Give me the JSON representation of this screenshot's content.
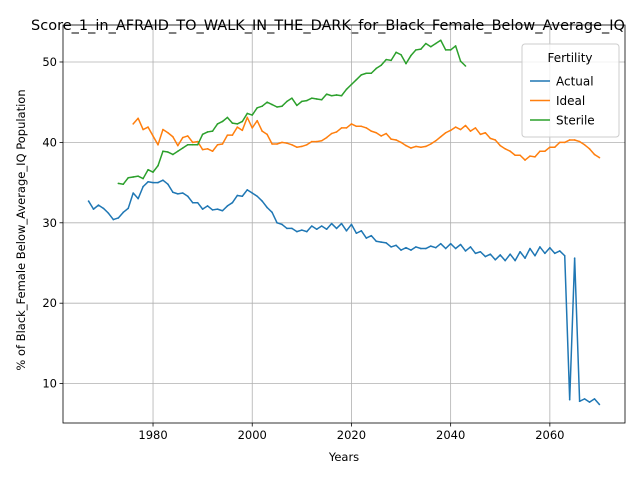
{
  "chart_data": {
    "type": "line",
    "title": "Score_1_in_AFRAID_TO_WALK_IN_THE_DARK_for_Black_Female_Below_Average_IQ",
    "xlabel": "Years",
    "ylabel": "% of Black_Female Below_Average_IQ Population",
    "xlim": [
      1961.85,
      2075.15
    ],
    "ylim": [
      5.1,
      54.6
    ],
    "xticks": [
      1980,
      2000,
      2020,
      2040,
      2060
    ],
    "yticks": [
      10,
      20,
      30,
      40,
      50
    ],
    "grid": true,
    "legend": {
      "title": "Fertility",
      "placement": "top-right"
    },
    "series": [
      {
        "name": "Actual",
        "color": "#1f77b4",
        "x": [
          1967,
          1968,
          1969,
          1970,
          1971,
          1972,
          1973,
          1974,
          1975,
          1976,
          1977,
          1978,
          1979,
          1980,
          1981,
          1982,
          1983,
          1984,
          1985,
          1986,
          1987,
          1988,
          1989,
          1990,
          1991,
          1992,
          1993,
          1994,
          1995,
          1996,
          1997,
          1998,
          1999,
          2000,
          2001,
          2002,
          2003,
          2004,
          2005,
          2006,
          2007,
          2008,
          2009,
          2010,
          2011,
          2012,
          2013,
          2014,
          2015,
          2016,
          2017,
          2018,
          2019,
          2020,
          2021,
          2022,
          2023,
          2024,
          2025,
          2026,
          2027,
          2028,
          2029,
          2030,
          2031,
          2032,
          2033,
          2034,
          2035,
          2036,
          2037,
          2038,
          2039,
          2040,
          2041,
          2042,
          2043,
          2044,
          2045,
          2046,
          2047,
          2048,
          2049,
          2050,
          2051,
          2052,
          2053,
          2054,
          2055,
          2056,
          2057,
          2058,
          2059,
          2060,
          2061,
          2062,
          2063,
          2064,
          2065,
          2066,
          2067,
          2068,
          2069,
          2070
        ],
        "values": [
          32.7,
          31.7,
          32.2,
          31.8,
          31.2,
          30.4,
          30.6,
          31.3,
          31.8,
          33.7,
          33.0,
          34.5,
          35.1,
          35.0,
          35.0,
          35.3,
          34.8,
          33.8,
          33.6,
          33.7,
          33.3,
          32.5,
          32.5,
          31.7,
          32.1,
          31.6,
          31.7,
          31.5,
          32.1,
          32.5,
          33.4,
          33.3,
          34.1,
          33.7,
          33.3,
          32.7,
          31.9,
          31.3,
          30.0,
          29.8,
          29.3,
          29.3,
          28.9,
          29.1,
          28.9,
          29.6,
          29.2,
          29.6,
          29.2,
          29.9,
          29.3,
          29.9,
          29.0,
          29.8,
          28.7,
          29.0,
          28.1,
          28.4,
          27.7,
          27.6,
          27.5,
          27.0,
          27.2,
          26.6,
          26.9,
          26.6,
          27.0,
          26.8,
          26.8,
          27.1,
          26.9,
          27.4,
          26.8,
          27.4,
          26.8,
          27.3,
          26.5,
          27.0,
          26.2,
          26.4,
          25.8,
          26.1,
          25.4,
          26.0,
          25.3,
          26.1,
          25.3,
          26.4,
          25.6,
          26.8,
          25.9,
          27.0,
          26.2,
          26.9,
          26.2,
          26.5,
          25.9,
          8.0,
          25.6,
          7.8,
          8.1,
          7.7,
          8.1,
          7.4
        ]
      },
      {
        "name": "Ideal",
        "color": "#ff7f0e",
        "x": [
          1976,
          1977,
          1978,
          1979,
          1980,
          1981,
          1982,
          1983,
          1984,
          1985,
          1986,
          1987,
          1988,
          1989,
          1990,
          1991,
          1992,
          1993,
          1994,
          1995,
          1996,
          1997,
          1998,
          1999,
          2000,
          2001,
          2002,
          2003,
          2004,
          2005,
          2006,
          2007,
          2008,
          2009,
          2010,
          2011,
          2012,
          2013,
          2014,
          2015,
          2016,
          2017,
          2018,
          2019,
          2020,
          2021,
          2022,
          2023,
          2024,
          2025,
          2026,
          2027,
          2028,
          2029,
          2030,
          2031,
          2032,
          2033,
          2034,
          2035,
          2036,
          2037,
          2038,
          2039,
          2040,
          2041,
          2042,
          2043,
          2044,
          2045,
          2046,
          2047,
          2048,
          2049,
          2050,
          2051,
          2052,
          2053,
          2054,
          2055,
          2056,
          2057,
          2058,
          2059,
          2060,
          2061,
          2062,
          2063,
          2064,
          2065,
          2066,
          2067,
          2068,
          2069,
          2070
        ],
        "values": [
          42.3,
          43.0,
          41.6,
          41.9,
          40.8,
          39.7,
          41.6,
          41.2,
          40.7,
          39.6,
          40.6,
          40.8,
          40.0,
          40.1,
          39.1,
          39.2,
          38.9,
          39.7,
          39.8,
          40.9,
          40.9,
          41.9,
          41.5,
          43.1,
          41.8,
          42.7,
          41.4,
          41.0,
          39.8,
          39.8,
          40.0,
          39.9,
          39.7,
          39.4,
          39.5,
          39.7,
          40.1,
          40.1,
          40.2,
          40.6,
          41.1,
          41.3,
          41.8,
          41.8,
          42.3,
          42.0,
          42.0,
          41.8,
          41.4,
          41.2,
          40.8,
          41.1,
          40.4,
          40.3,
          40.0,
          39.6,
          39.3,
          39.5,
          39.4,
          39.5,
          39.8,
          40.2,
          40.7,
          41.2,
          41.5,
          41.9,
          41.6,
          42.1,
          41.4,
          41.8,
          41.0,
          41.2,
          40.5,
          40.3,
          39.6,
          39.2,
          38.9,
          38.4,
          38.4,
          37.8,
          38.3,
          38.2,
          38.9,
          38.9,
          39.4,
          39.4,
          40.0,
          40.0,
          40.3,
          40.3,
          40.1,
          39.7,
          39.2,
          38.5,
          38.1
        ]
      },
      {
        "name": "Sterile",
        "color": "#2ca02c",
        "x": [
          1973,
          1974,
          1975,
          1976,
          1977,
          1978,
          1979,
          1980,
          1981,
          1982,
          1983,
          1984,
          1985,
          1986,
          1987,
          1988,
          1989,
          1990,
          1991,
          1992,
          1993,
          1994,
          1995,
          1996,
          1997,
          1998,
          1999,
          2000,
          2001,
          2002,
          2003,
          2004,
          2005,
          2006,
          2007,
          2008,
          2009,
          2010,
          2011,
          2012,
          2013,
          2014,
          2015,
          2016,
          2017,
          2018,
          2019,
          2020,
          2021,
          2022,
          2023,
          2024,
          2025,
          2026,
          2027,
          2028,
          2029,
          2030,
          2031,
          2032,
          2033,
          2034,
          2035,
          2036,
          2037,
          2038,
          2039,
          2040,
          2041,
          2042,
          2043
        ],
        "values": [
          34.9,
          34.8,
          35.6,
          35.7,
          35.8,
          35.5,
          36.6,
          36.3,
          37.1,
          38.9,
          38.8,
          38.5,
          38.9,
          39.3,
          39.7,
          39.7,
          39.7,
          41.0,
          41.3,
          41.4,
          42.3,
          42.6,
          43.1,
          42.4,
          42.3,
          42.6,
          43.6,
          43.4,
          44.3,
          44.5,
          45.0,
          44.7,
          44.4,
          44.5,
          45.1,
          45.5,
          44.6,
          45.1,
          45.2,
          45.5,
          45.4,
          45.3,
          46.0,
          45.8,
          45.9,
          45.8,
          46.6,
          47.2,
          47.8,
          48.4,
          48.6,
          48.6,
          49.2,
          49.6,
          50.3,
          50.2,
          51.2,
          50.9,
          49.8,
          50.8,
          51.5,
          51.6,
          52.3,
          51.9,
          52.3,
          52.7,
          51.5,
          51.5,
          52.0,
          50.1,
          49.5
        ]
      }
    ]
  }
}
